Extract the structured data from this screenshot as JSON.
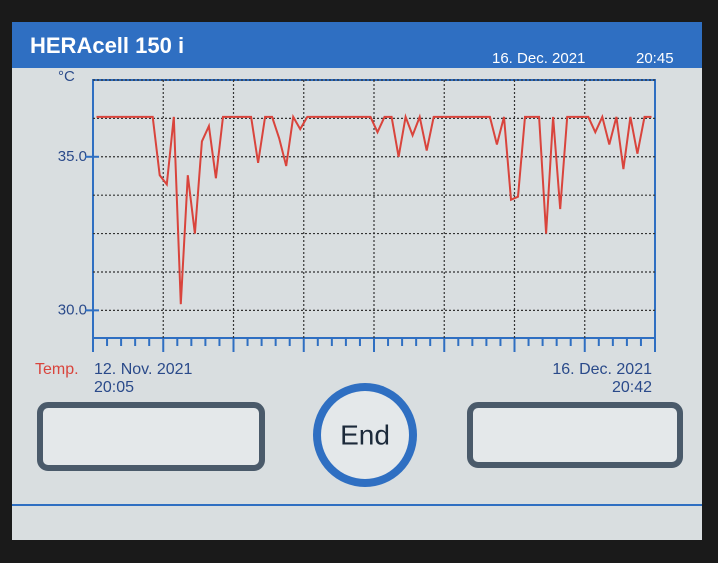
{
  "header": {
    "title": "HERAcell 150 i",
    "date": "16. Dec. 2021",
    "time": "20:45"
  },
  "chart_data": {
    "type": "line",
    "y_label": "°C",
    "series": [
      {
        "name": "Temp.",
        "color": "#d9443c",
        "values": [
          36.3,
          36.3,
          36.3,
          36.3,
          36.3,
          36.3,
          36.3,
          36.3,
          36.3,
          34.4,
          34.1,
          36.3,
          30.2,
          34.4,
          32.5,
          35.5,
          36.0,
          34.3,
          36.3,
          36.3,
          36.3,
          36.3,
          36.3,
          34.8,
          36.3,
          36.3,
          35.6,
          34.7,
          36.3,
          35.9,
          36.3,
          36.3,
          36.3,
          36.3,
          36.3,
          36.3,
          36.3,
          36.3,
          36.3,
          36.3,
          35.8,
          36.3,
          36.3,
          35.0,
          36.3,
          35.7,
          36.3,
          35.2,
          36.3,
          36.3,
          36.3,
          36.3,
          36.3,
          36.3,
          36.3,
          36.3,
          36.3,
          35.4,
          36.3,
          33.6,
          33.7,
          36.3,
          36.3,
          36.3,
          32.5,
          36.3,
          33.3,
          36.3,
          36.3,
          36.3,
          36.3,
          35.8,
          36.3,
          35.4,
          36.3,
          34.6,
          36.3,
          35.1,
          36.3,
          36.3
        ]
      }
    ],
    "ylim": [
      29.1,
      37.5
    ],
    "yticks": [
      {
        "value": 35,
        "label": "35.0"
      },
      {
        "value": 30,
        "label": "30.0"
      }
    ],
    "grid_y": [
      37.5,
      36.25,
      35,
      33.75,
      32.5,
      31.25,
      30
    ],
    "x_start": {
      "date": "12. Nov. 2021",
      "time": "20:05"
    },
    "x_end": {
      "date": "16. Dec. 2021",
      "time": "20:42"
    }
  },
  "buttons": {
    "center": "End"
  }
}
